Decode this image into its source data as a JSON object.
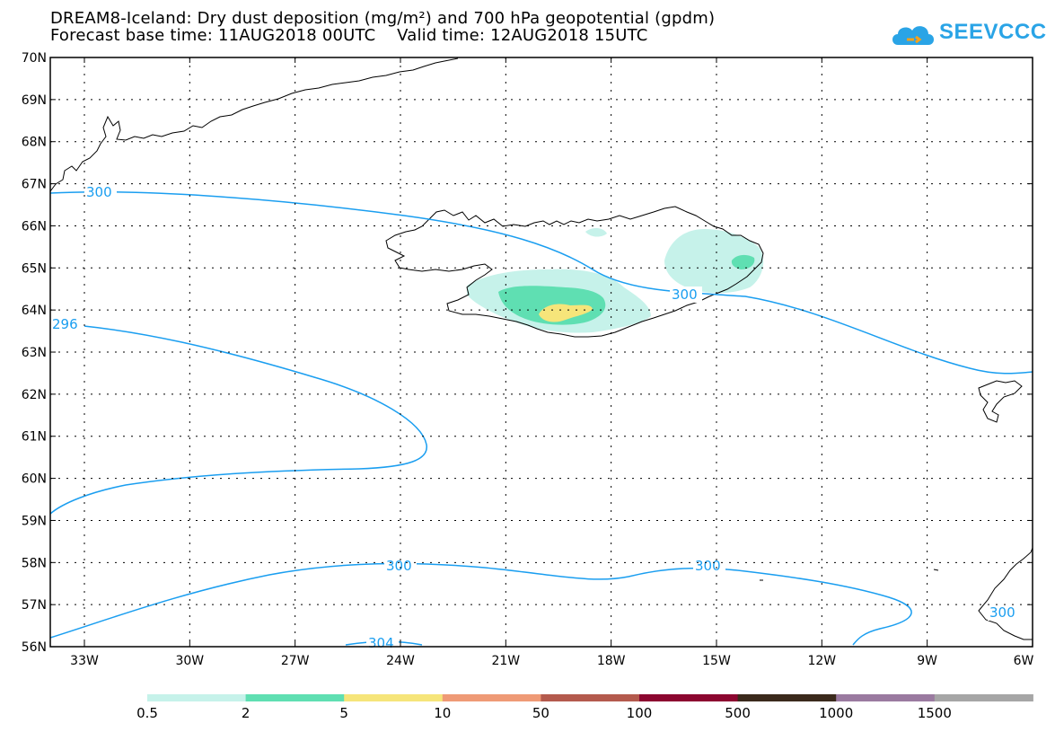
{
  "header": {
    "title_line1": "DREAM8-Iceland: Dry dust deposition (mg/m²) and 700 hPa geopotential (gpdm)",
    "title_line2": "Forecast base time: 11AUG2018 00UTC    Valid time: 12AUG2018 15UTC"
  },
  "logo": {
    "text": "SEEVCCC",
    "color": "#2aa4e6"
  },
  "axes": {
    "lat_labels": [
      "70N",
      "69N",
      "68N",
      "67N",
      "66N",
      "65N",
      "64N",
      "63N",
      "62N",
      "61N",
      "60N",
      "59N",
      "58N",
      "57N",
      "56N"
    ],
    "lon_labels": [
      "33W",
      "30W",
      "27W",
      "24W",
      "21W",
      "18W",
      "15W",
      "12W",
      "9W",
      "6W"
    ]
  },
  "contours": {
    "color": "#1a9ef0",
    "labels": [
      "300",
      "296",
      "300",
      "300",
      "300",
      "304",
      "300"
    ]
  },
  "colorbar": {
    "labels": [
      "0.5",
      "2",
      "5",
      "10",
      "50",
      "100",
      "500",
      "1000",
      "1500"
    ],
    "colors": [
      "#c6f2ea",
      "#5fdfb2",
      "#f6e57a",
      "#ef9a76",
      "#b45a4d",
      "#8c0630",
      "#3b2a1c",
      "#9a7aa0",
      "#a6a6a6"
    ]
  }
}
